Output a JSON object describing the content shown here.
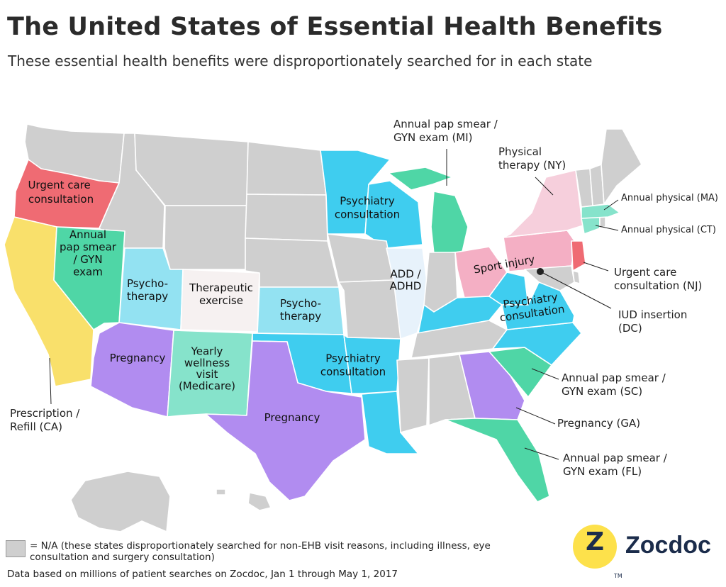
{
  "title": "The United States of Essential Health Benefits",
  "subtitle": "These essential health benefits were disproportionately searched for in each state",
  "colors": {
    "na": "#cfcfcf",
    "red": "#ef6b73",
    "yellow": "#f9e06b",
    "green": "#4fd6a6",
    "light_green": "#86e3cb",
    "light_blue": "#93e2f2",
    "cyan": "#3fcdef",
    "purple": "#b18cf0",
    "pink_light": "#f6cfdc",
    "pink": "#f4afc4",
    "pale_blue": "#e7f2fb",
    "off_white": "#f6f1f1"
  },
  "map": {
    "labels": {
      "or": "Urgent care consultation",
      "nv": "Annual pap smear / GYN exam",
      "ut": "Psycho- therapy",
      "co": "Therapeutic exercise",
      "ks": "Psycho- therapy",
      "az": "Pregnancy",
      "nm": "Yearly wellness visit (Medicare)",
      "tx": "Pregnancy",
      "mn_wi": "Psychiatry consultation",
      "il": "ADD / ADHD",
      "ok_ar": "Psychiatry consultation",
      "oh_pa": "Sport injury",
      "ky_va": "Psychiatry consultation"
    },
    "callouts": {
      "mi": "Annual pap smear / GYN exam (MI)",
      "ny": "Physical therapy (NY)",
      "ma": "Annual physical (MA)",
      "ct": "Annual physical (CT)",
      "nj": "Urgent care consultation (NJ)",
      "dc": "IUD insertion (DC)",
      "sc": "Annual pap smear / GYN exam (SC)",
      "ga": "Pregnancy (GA)",
      "fl": "Annual pap smear / GYN exam (FL)",
      "ca": "Prescription / Refill (CA)"
    }
  },
  "legend": {
    "text": "= N/A (these states disproportionately searched for non-EHB visit reasons, including illness, eye consultation and surgery consultation)"
  },
  "footnote": "Data based on millions of patient searches on Zocdoc, Jan 1 through May 1, 2017",
  "logo": {
    "mark": "Z",
    "name": "Zocdoc",
    "tm": "TM"
  }
}
